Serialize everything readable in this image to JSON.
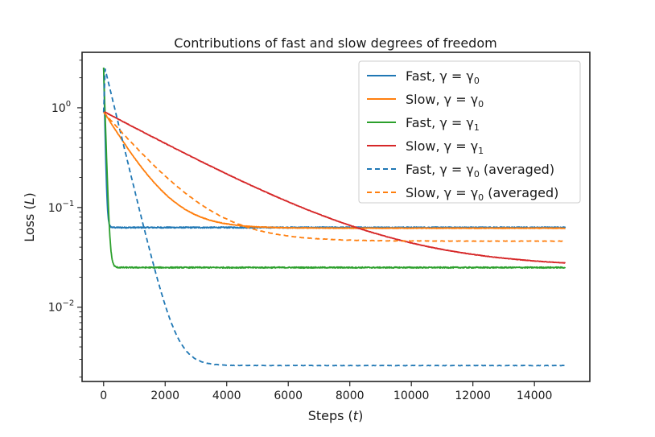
{
  "chart_data": {
    "type": "line",
    "title": "Contributions of fast and slow degrees of freedom",
    "xlabel": "Steps (t)",
    "xlabel_parts": {
      "prefix": "Steps (",
      "var": "t",
      "suffix": ")"
    },
    "ylabel": "Loss (L)",
    "ylabel_parts": {
      "prefix": "Loss (",
      "var": "L",
      "suffix": ")"
    },
    "xlim": [
      -700,
      15800
    ],
    "ylim": [
      0.0018,
      3.6
    ],
    "yscale": "log",
    "x_ticks": [
      0,
      2000,
      4000,
      6000,
      8000,
      10000,
      12000,
      14000
    ],
    "y_ticks": [
      {
        "value": 1.0,
        "base": "10",
        "exp": "0"
      },
      {
        "value": 0.1,
        "base": "10",
        "exp": "−1"
      },
      {
        "value": 0.01,
        "base": "10",
        "exp": "−2"
      }
    ],
    "legend_position": "top-right",
    "series": [
      {
        "name": "Fast, γ = γ0",
        "label_main": "Fast, γ = γ",
        "label_sub": "0",
        "label_tail": "",
        "color": "#1f77b4",
        "dash": "solid",
        "kind": "exp",
        "start": 2.5,
        "floor": 0.063,
        "tau": 30,
        "x_start": 0,
        "x_end": 15000,
        "noise": 0.012
      },
      {
        "name": "Slow, γ = γ0",
        "label_main": "Slow, γ = γ",
        "label_sub": "0",
        "label_tail": "",
        "color": "#ff7f0e",
        "dash": "solid",
        "kind": "exp",
        "start": 0.92,
        "floor": 0.062,
        "tau": 820,
        "x_start": 0,
        "x_end": 15000,
        "noise": 0.006
      },
      {
        "name": "Fast, γ = γ1",
        "label_main": "Fast, γ = γ",
        "label_sub": "1",
        "label_tail": "",
        "color": "#2ca02c",
        "dash": "solid",
        "kind": "exp",
        "start": 2.5,
        "floor": 0.025,
        "tau": 45,
        "x_start": 0,
        "x_end": 15000,
        "noise": 0.012
      },
      {
        "name": "Slow, γ = γ1",
        "label_main": "Slow, γ = γ",
        "label_sub": "1",
        "label_tail": "",
        "color": "#d62728",
        "dash": "solid",
        "kind": "exp",
        "start": 0.92,
        "floor": 0.025,
        "tau": 2600,
        "x_start": 0,
        "x_end": 15000,
        "noise": 0.005
      },
      {
        "name": "Fast, γ = γ0 (averaged)",
        "label_main": "Fast, γ = γ",
        "label_sub": "0",
        "label_tail": " (averaged)",
        "color": "#1f77b4",
        "dash": "dashed",
        "kind": "peak",
        "x0": 0,
        "peak_x": 50,
        "peak": 2.45,
        "floor": 0.0026,
        "tau": 340,
        "x_start": 0,
        "x_end": 15000,
        "noise": 0.004
      },
      {
        "name": "Slow, γ = γ0 (averaged)",
        "label_main": "Slow, γ = γ",
        "label_sub": "0",
        "label_tail": " (averaged)",
        "color": "#ff7f0e",
        "dash": "dashed",
        "kind": "exp",
        "start": 0.9,
        "floor": 0.046,
        "tau": 1200,
        "x_start": 0,
        "x_end": 15000,
        "noise": 0.004
      }
    ]
  }
}
